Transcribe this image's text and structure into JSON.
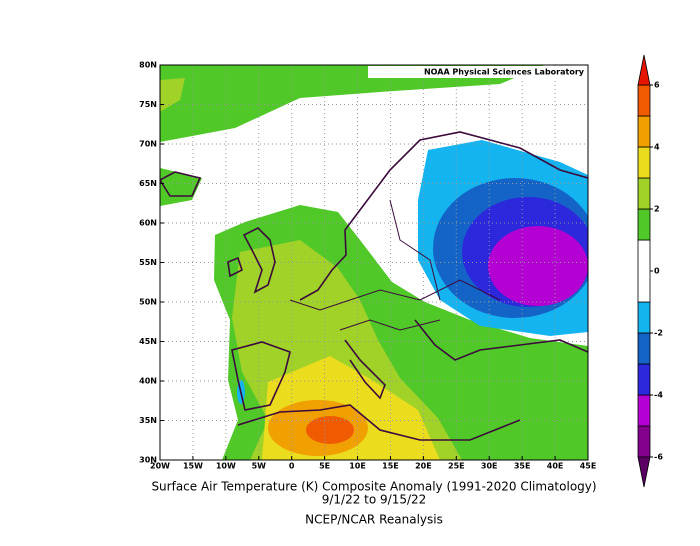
{
  "map": {
    "credit": "NOAA Physical Sciences Laboratory",
    "caption": [
      "Surface Air Temperature (K) Composite Anomaly (1991-2020 Climatology)",
      "9/1/22  to 9/15/22",
      "NCEP/NCAR Reanalysis"
    ],
    "lonlim": [
      -20,
      45
    ],
    "latlim": [
      30,
      80
    ],
    "lonticks": [
      {
        "value": -20,
        "label": "20W"
      },
      {
        "value": -15,
        "label": "15W"
      },
      {
        "value": -10,
        "label": "10W"
      },
      {
        "value": -5,
        "label": "5W"
      },
      0,
      {
        "value": 5,
        "label": "5E"
      },
      {
        "value": 10,
        "label": "10E"
      },
      {
        "value": 15,
        "label": "15E"
      },
      {
        "value": 20,
        "label": "20E"
      },
      {
        "value": 25,
        "label": "25E"
      },
      {
        "value": 30,
        "label": "30E"
      },
      {
        "value": 35,
        "label": "35E"
      },
      {
        "value": 40,
        "label": "40E"
      },
      {
        "value": 45,
        "label": "45E"
      }
    ],
    "latticks": [
      {
        "value": 30,
        "label": "30N"
      },
      {
        "value": 35,
        "label": "35N"
      },
      {
        "value": 40,
        "label": "40N"
      },
      {
        "value": 45,
        "label": "45N"
      },
      {
        "value": 50,
        "label": "50N"
      },
      {
        "value": 55,
        "label": "55N"
      },
      {
        "value": 60,
        "label": "60N"
      },
      {
        "value": 65,
        "label": "65N"
      },
      {
        "value": 70,
        "label": "70N"
      },
      {
        "value": 75,
        "label": "75N"
      },
      {
        "value": 80,
        "label": "80N"
      }
    ],
    "grid": true,
    "colorbar": {
      "range": [
        -6,
        6
      ],
      "ticks": [
        -6,
        -4,
        -2,
        0,
        2,
        4,
        6
      ],
      "levels": [
        -6,
        -5,
        -4,
        -3,
        -2,
        -1,
        1,
        2,
        3,
        4,
        5,
        6
      ],
      "colors": [
        "#82008c",
        "#b400d2",
        "#2c28dc",
        "#1464c8",
        "#14b4f0",
        "#ffffff",
        "#50c828",
        "#a0d228",
        "#ecdc1e",
        "#f0a000",
        "#f05a00"
      ],
      "under_color": "#5a0064",
      "over_color": "#e61400"
    }
  }
}
